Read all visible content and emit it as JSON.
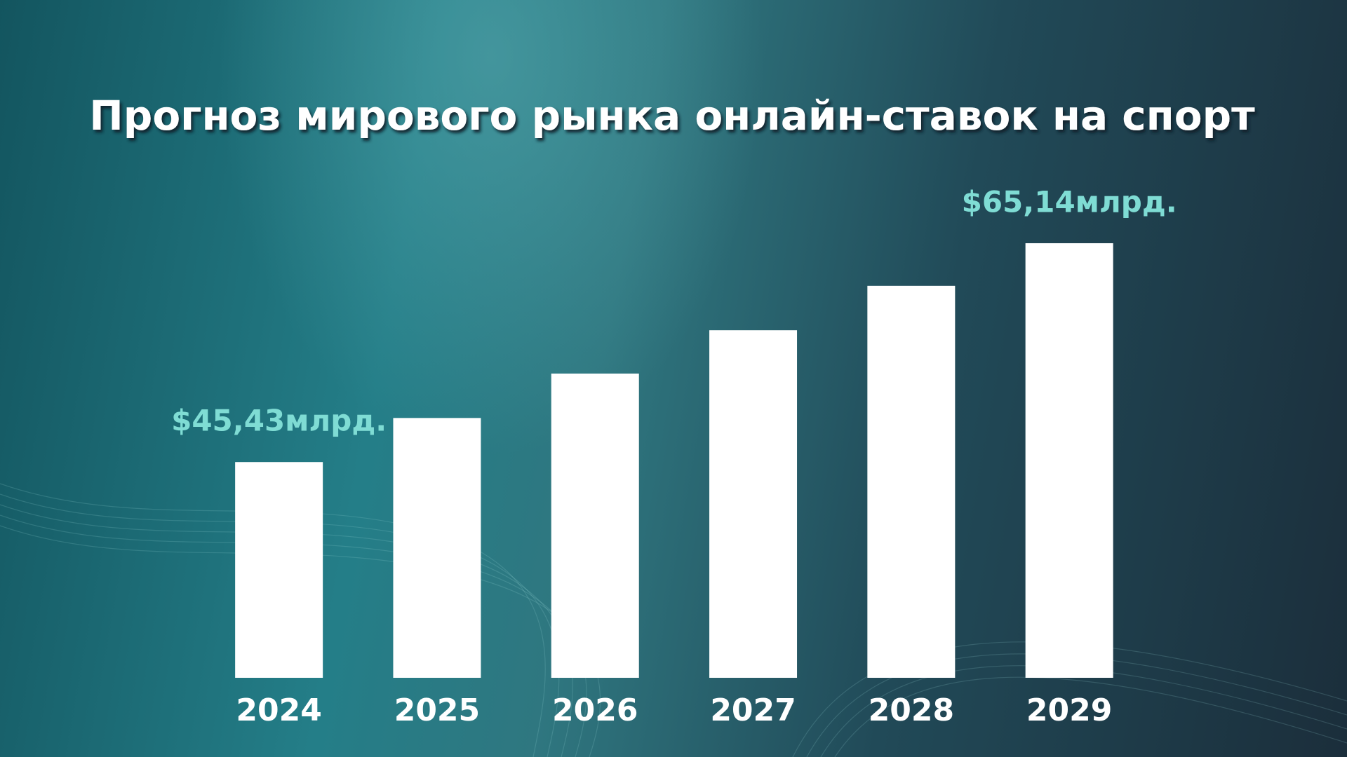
{
  "chart_data": {
    "type": "bar",
    "title": "Прогноз мирового рынка онлайн-ставок на спорт",
    "categories": [
      "2024",
      "2025",
      "2026",
      "2027",
      "2028",
      "2029"
    ],
    "values": [
      45.43,
      49.4,
      53.4,
      57.3,
      61.3,
      65.14
    ],
    "value_labels": [
      "$45,43млрд.",
      null,
      null,
      null,
      null,
      "$65,14млрд."
    ],
    "color": "#ffffff",
    "label_color": "#7fdcd4",
    "ylim": [
      26,
      70
    ]
  }
}
